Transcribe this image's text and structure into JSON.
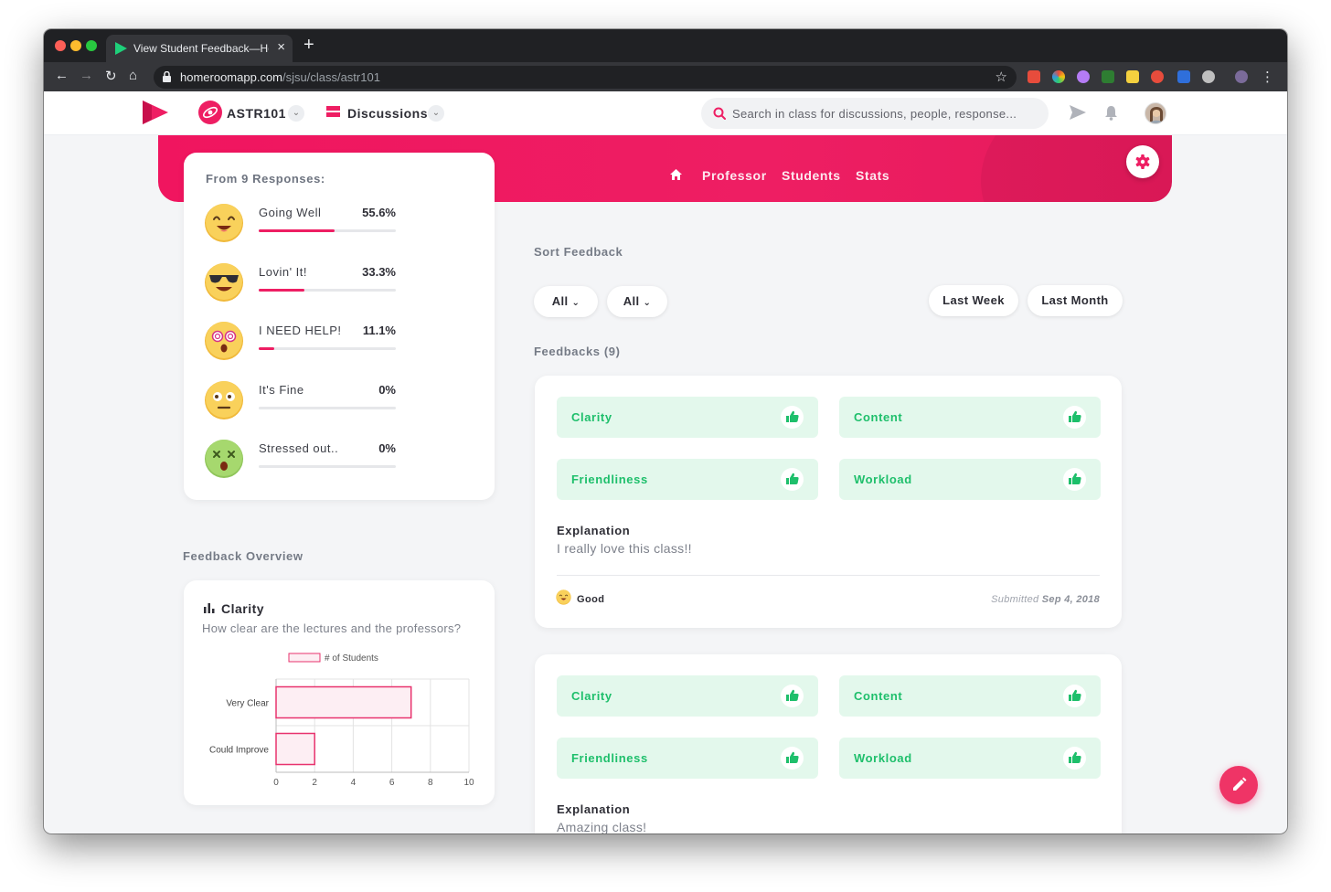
{
  "browser": {
    "tab_title": "View Student Feedback—Homeroom",
    "url_host": "homeroomapp.com",
    "url_path": "/sjsu/class/astr101",
    "icons": [
      "back-icon",
      "forward-icon",
      "reload-icon",
      "home-icon",
      "lock-icon",
      "star-icon",
      "menu-icon"
    ]
  },
  "header": {
    "class_name": "ASTR101",
    "section_label": "Discussions",
    "search_placeholder": "Search in class for discussions, people, response..."
  },
  "banner": {
    "tabs": [
      "Professor",
      "Students",
      "Stats"
    ]
  },
  "responses": {
    "title": "From 9 Responses:",
    "items": [
      {
        "label": "Going Well",
        "percent": "55.6%",
        "fraction": 0.556,
        "icon": "happy-face-icon"
      },
      {
        "label": "Lovin' It!",
        "percent": "33.3%",
        "fraction": 0.333,
        "icon": "sunglasses-face-icon"
      },
      {
        "label": "I NEED HELP!",
        "percent": "11.1%",
        "fraction": 0.111,
        "icon": "dizzy-face-icon"
      },
      {
        "label": "It's Fine",
        "percent": "0%",
        "fraction": 0,
        "icon": "neutral-face-icon"
      },
      {
        "label": "Stressed out..",
        "percent": "0%",
        "fraction": 0,
        "icon": "sick-face-icon"
      }
    ]
  },
  "overview": {
    "section_title": "Feedback Overview",
    "chart_title": "Clarity",
    "chart_question": "How clear are the lectures and the professors?"
  },
  "chart_data": {
    "type": "bar",
    "orientation": "horizontal",
    "categories": [
      "Very Clear",
      "Could Improve"
    ],
    "series": [
      {
        "name": "# of Students",
        "values": [
          7,
          2
        ]
      }
    ],
    "xlim": [
      0,
      10
    ],
    "xticks": [
      "0",
      "2",
      "4",
      "6",
      "8",
      "10"
    ],
    "legend": "top",
    "grid": true,
    "colors": {
      "fill": "#fdeef3",
      "stroke": "#e8336e"
    }
  },
  "sort": {
    "title": "Sort Feedback",
    "filter1": "All",
    "filter2": "All",
    "range1": "Last Week",
    "range2": "Last Month"
  },
  "feedbacks": {
    "title": "Feedbacks (9)",
    "items": [
      {
        "tags": [
          "Clarity",
          "Content",
          "Friendliness",
          "Workload"
        ],
        "explanation_label": "Explanation",
        "explanation": "I really love this class!!",
        "mood": "Good",
        "submitted_label": "Submitted",
        "date": "Sep 4, 2018"
      },
      {
        "tags": [
          "Clarity",
          "Content",
          "Friendliness",
          "Workload"
        ],
        "explanation_label": "Explanation",
        "explanation": "Amazing class!"
      }
    ]
  },
  "colors": {
    "brand": "#ee1e63",
    "positive": "#1ebf6b",
    "positive_bg": "#e3f8ec"
  }
}
